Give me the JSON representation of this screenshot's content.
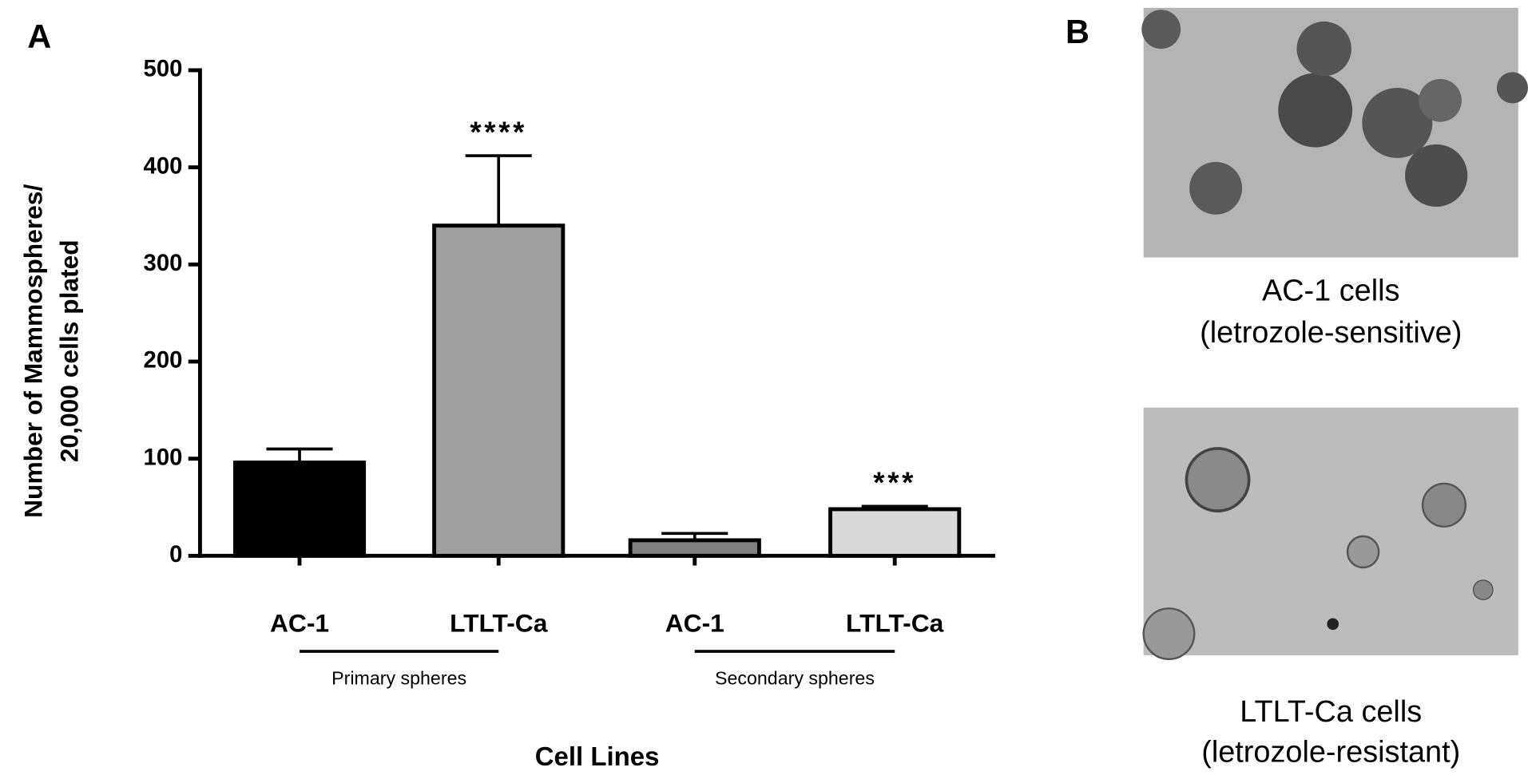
{
  "chart_data": {
    "type": "bar",
    "panel_labels": [
      "A",
      "B"
    ],
    "ylabel": [
      "Number of Mammospheres/",
      "20,000 cells plated"
    ],
    "xlabel": "Cell Lines",
    "categories": [
      "AC-1",
      "LTLT-Ca",
      "AC-1",
      "LTLT-Ca"
    ],
    "groups": [
      "Primary spheres",
      "Secondary spheres"
    ],
    "values": [
      96,
      340,
      16,
      48
    ],
    "errors": [
      14,
      72,
      7,
      3
    ],
    "colors": [
      "#000000",
      "#a0a0a0",
      "#808080",
      "#d9d9d9"
    ],
    "annotations": [
      null,
      "****",
      null,
      "***"
    ],
    "ylim": [
      0,
      500
    ],
    "yticks": [
      0,
      100,
      200,
      300,
      400,
      500
    ],
    "images": [
      {
        "caption": [
          "AC-1 cells",
          "(letrozole-sensitive)"
        ]
      },
      {
        "caption": [
          "LTLT-Ca cells",
          "(letrozole-resistant)"
        ]
      }
    ]
  }
}
